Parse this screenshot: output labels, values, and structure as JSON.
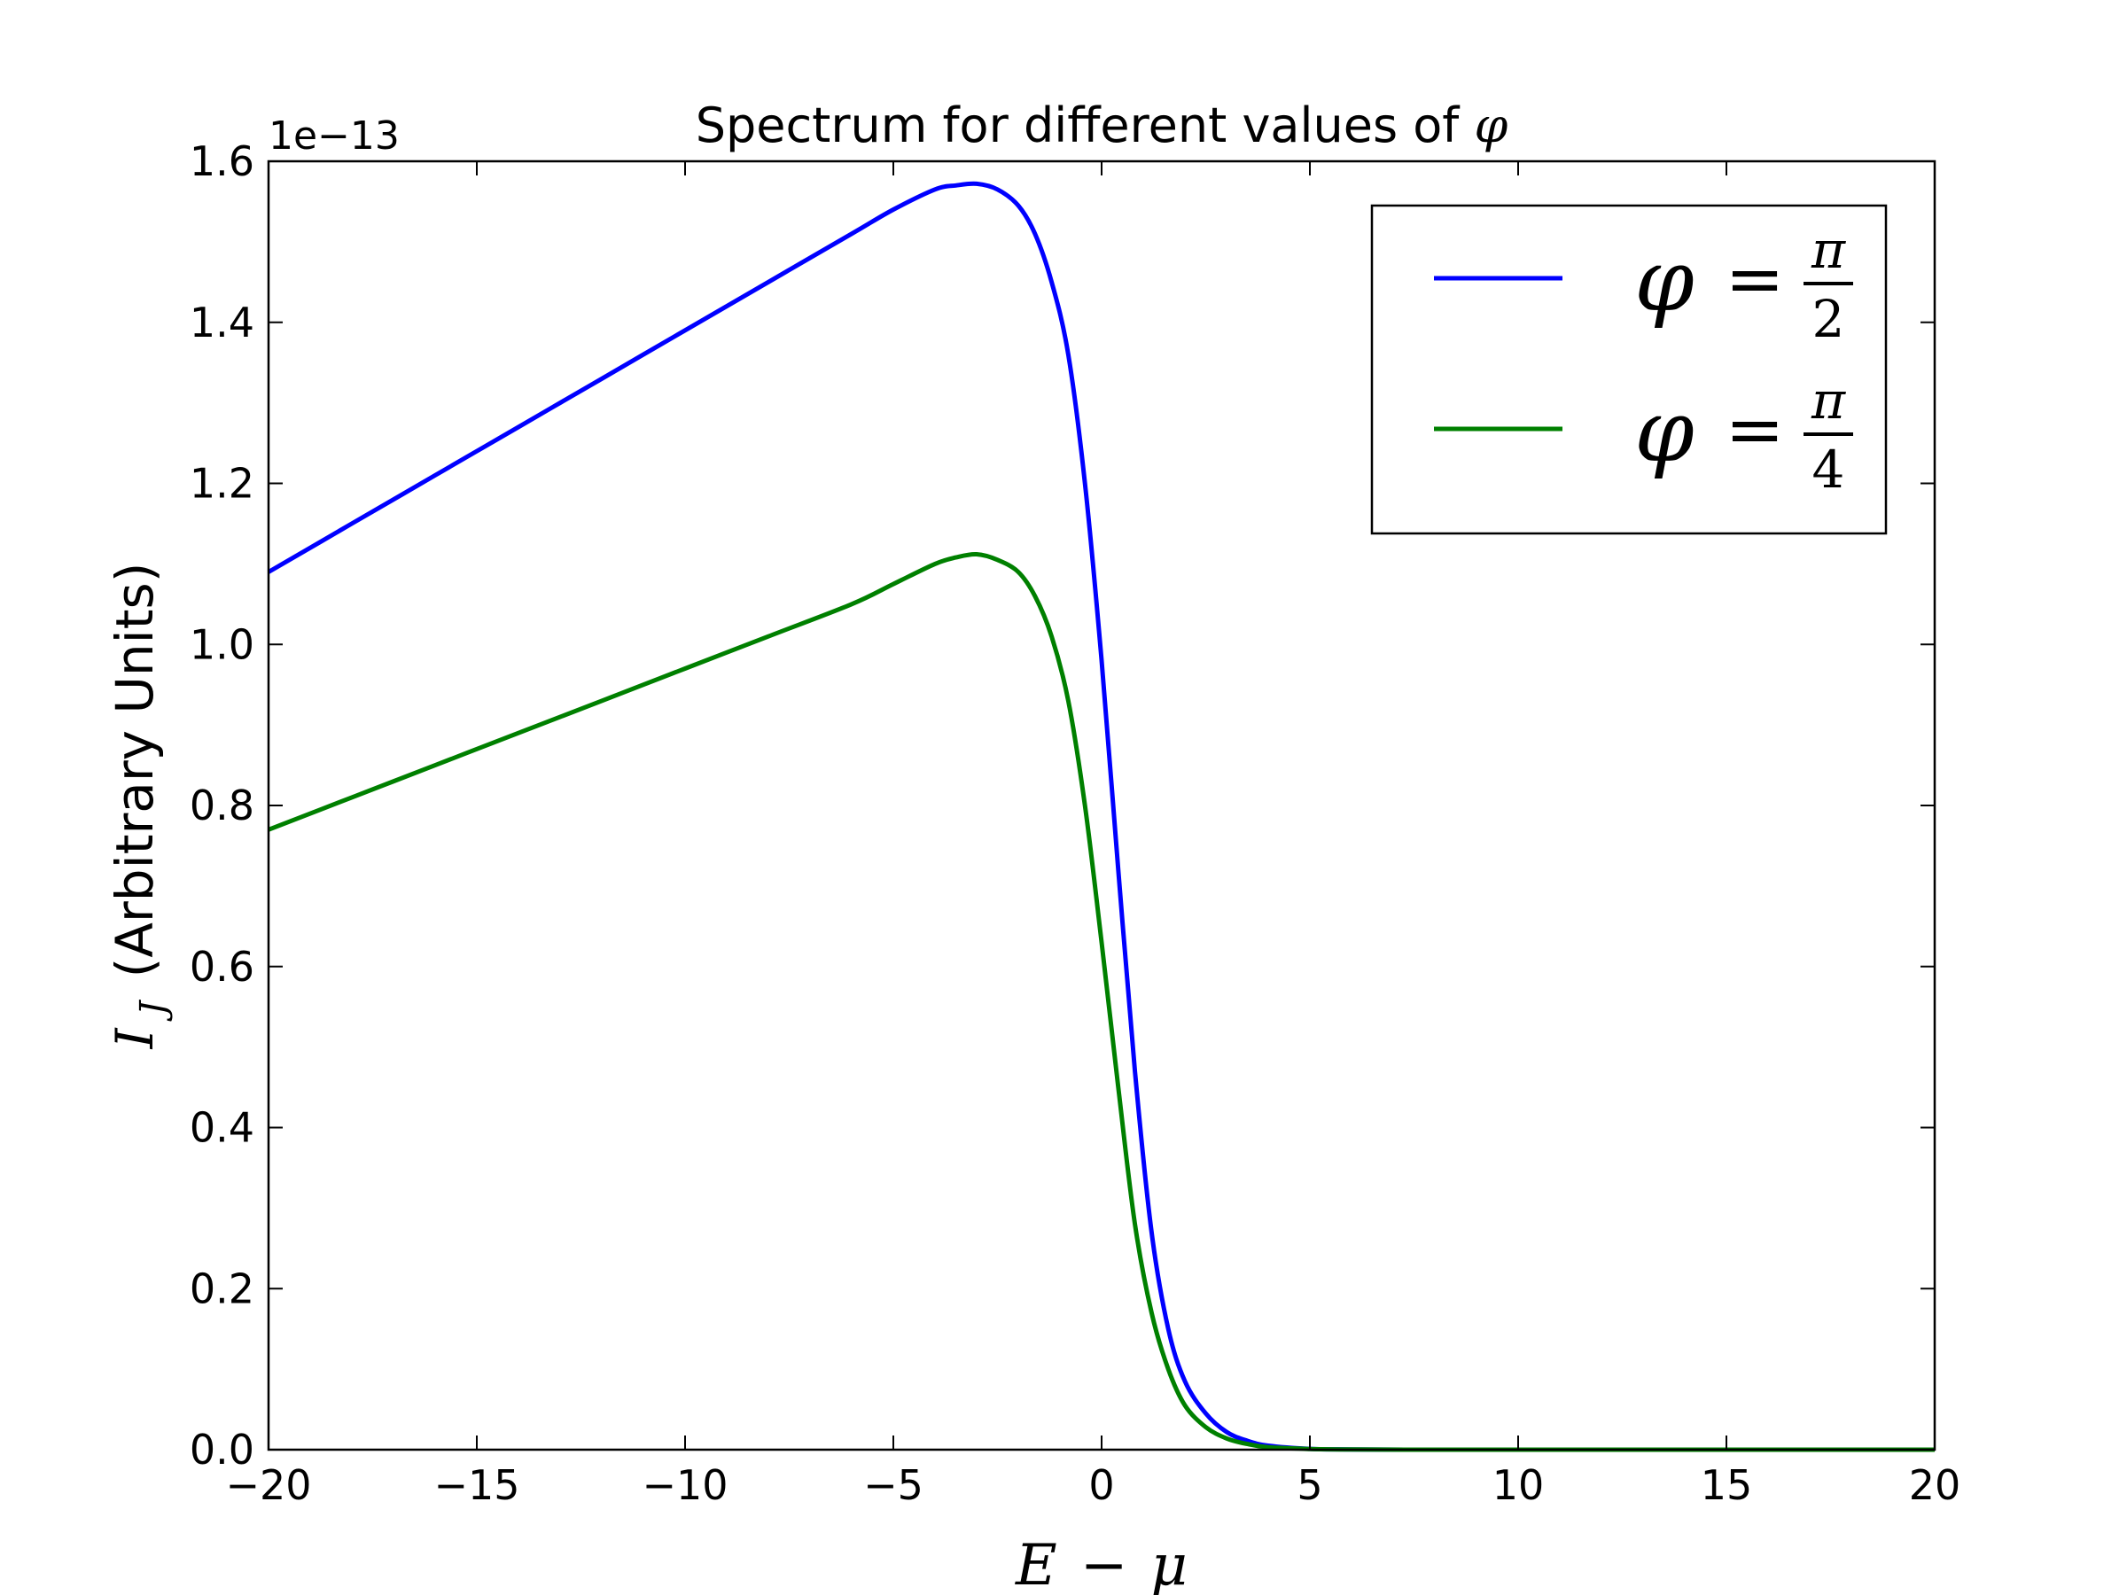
{
  "chart_data": {
    "type": "line",
    "title_text": "Spectrum for different values of",
    "title_symbol": "φ",
    "xlabel": {
      "lhs": "E",
      "op": "−",
      "rhs": "μ"
    },
    "ylabel": {
      "symbol": "I",
      "subscript": "J",
      "text": "(Arbitrary Units)"
    },
    "y_offset_label": "1e−13",
    "xlim": [
      -20,
      20
    ],
    "ylim": [
      0.0,
      1.6
    ],
    "xticks": [
      -20,
      -15,
      -10,
      -5,
      0,
      5,
      10,
      15,
      20
    ],
    "xtick_labels": [
      "−20",
      "−15",
      "−10",
      "−5",
      "0",
      "5",
      "10",
      "15",
      "20"
    ],
    "yticks": [
      0.0,
      0.2,
      0.4,
      0.6,
      0.8,
      1.0,
      1.2,
      1.4,
      1.6
    ],
    "ytick_labels": [
      "0.0",
      "0.2",
      "0.4",
      "0.6",
      "0.8",
      "1.0",
      "1.2",
      "1.4",
      "1.6"
    ],
    "grid": false,
    "legend_position": "top-right",
    "series": [
      {
        "legend_symbol": "φ",
        "legend_eq": "=",
        "legend_num": "π",
        "legend_den": "2",
        "color": "#0000ff",
        "x": [
          -20,
          -18,
          -16,
          -14,
          -12,
          -10,
          -8,
          -6,
          -5,
          -4,
          -3.5,
          -3,
          -2.5,
          -2,
          -1.6,
          -1.2,
          -0.8,
          -0.4,
          0,
          0.4,
          0.8,
          1.2,
          1.6,
          2.0,
          2.5,
          3,
          3.5,
          4,
          5,
          6,
          8,
          10,
          15,
          20
        ],
        "y": [
          1.09,
          1.15,
          1.21,
          1.27,
          1.33,
          1.39,
          1.45,
          1.51,
          1.54,
          1.565,
          1.57,
          1.572,
          1.565,
          1.545,
          1.51,
          1.45,
          1.36,
          1.2,
          0.98,
          0.72,
          0.47,
          0.27,
          0.15,
          0.085,
          0.045,
          0.022,
          0.011,
          0.005,
          0.001,
          0.0003,
          0.0,
          0.0,
          0.0,
          0.0
        ]
      },
      {
        "legend_symbol": "φ",
        "legend_eq": "=",
        "legend_num": "π",
        "legend_den": "4",
        "color": "#008000",
        "x": [
          -20,
          -18,
          -16,
          -14,
          -12,
          -10,
          -8,
          -6,
          -5,
          -4,
          -3.5,
          -3,
          -2.5,
          -2,
          -1.6,
          -1.2,
          -0.8,
          -0.4,
          0,
          0.4,
          0.8,
          1.2,
          1.6,
          2.0,
          2.5,
          3,
          3.5,
          4,
          5,
          6,
          8,
          10,
          15,
          20
        ],
        "y": [
          0.77,
          0.81,
          0.85,
          0.89,
          0.93,
          0.97,
          1.01,
          1.05,
          1.075,
          1.1,
          1.108,
          1.112,
          1.105,
          1.09,
          1.06,
          1.01,
          0.93,
          0.8,
          0.63,
          0.45,
          0.28,
          0.17,
          0.1,
          0.055,
          0.028,
          0.014,
          0.007,
          0.003,
          0.0008,
          0.0002,
          0.0,
          0.0,
          0.0,
          0.0
        ]
      }
    ]
  }
}
